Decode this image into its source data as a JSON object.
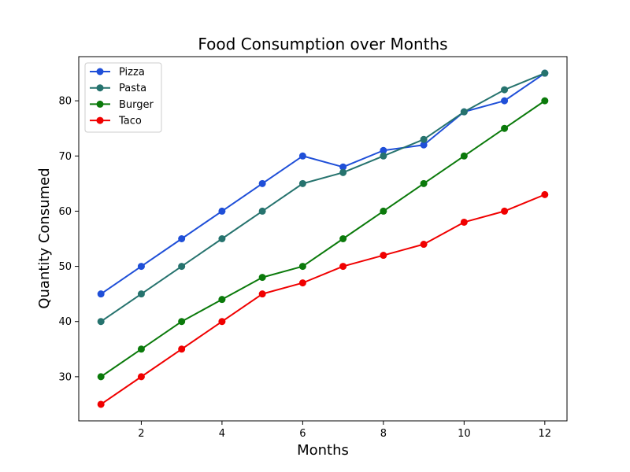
{
  "chart_data": {
    "type": "line",
    "title": "Food Consumption over Months",
    "xlabel": "Months",
    "ylabel": "Quantity Consumed",
    "x": [
      1,
      2,
      3,
      4,
      5,
      6,
      7,
      8,
      9,
      10,
      11,
      12
    ],
    "xlim": [
      0.45,
      12.55
    ],
    "ylim": [
      22,
      88
    ],
    "xticks": [
      2,
      4,
      6,
      8,
      10,
      12
    ],
    "yticks": [
      30,
      40,
      50,
      60,
      70,
      80
    ],
    "grid": false,
    "legend_position": "top-left",
    "series": [
      {
        "name": "Pizza",
        "color": "#1f4fd8",
        "marker": "circle",
        "values": [
          45,
          50,
          55,
          60,
          65,
          70,
          68,
          71,
          72,
          78,
          80,
          85
        ]
      },
      {
        "name": "Pasta",
        "color": "#26736e",
        "marker": "circle",
        "values": [
          40,
          45,
          50,
          55,
          60,
          65,
          67,
          70,
          73,
          78,
          82,
          85
        ]
      },
      {
        "name": "Burger",
        "color": "#0b7a0b",
        "marker": "circle",
        "values": [
          30,
          35,
          40,
          44,
          48,
          50,
          55,
          60,
          65,
          70,
          75,
          80
        ]
      },
      {
        "name": "Taco",
        "color": "#f00000",
        "marker": "circle",
        "values": [
          25,
          30,
          35,
          40,
          45,
          47,
          50,
          52,
          54,
          58,
          60,
          63
        ]
      }
    ]
  }
}
